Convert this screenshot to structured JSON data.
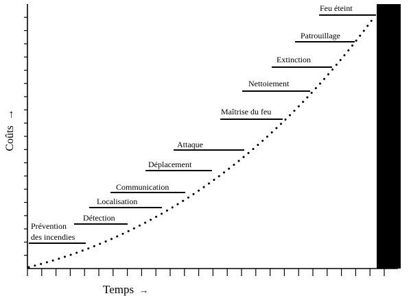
{
  "axes": {
    "y_label": "Coûts",
    "y_arrow": "→",
    "x_label": "Temps",
    "x_arrow": "→"
  },
  "stages": [
    {
      "label": "Prévention",
      "label_line2": "des  incendies"
    },
    {
      "label": "Détection"
    },
    {
      "label": "Localisation"
    },
    {
      "label": "Communication"
    },
    {
      "label": "Déplacement"
    },
    {
      "label": "Attaque"
    },
    {
      "label": "Maîtrise du feu"
    },
    {
      "label": "Nettoiement"
    },
    {
      "label": "Extinction"
    },
    {
      "label": "Patrouillage"
    },
    {
      "label": "Feu éteint"
    }
  ],
  "colors": {
    "ink": "#000000",
    "background": "#ffffff"
  }
}
